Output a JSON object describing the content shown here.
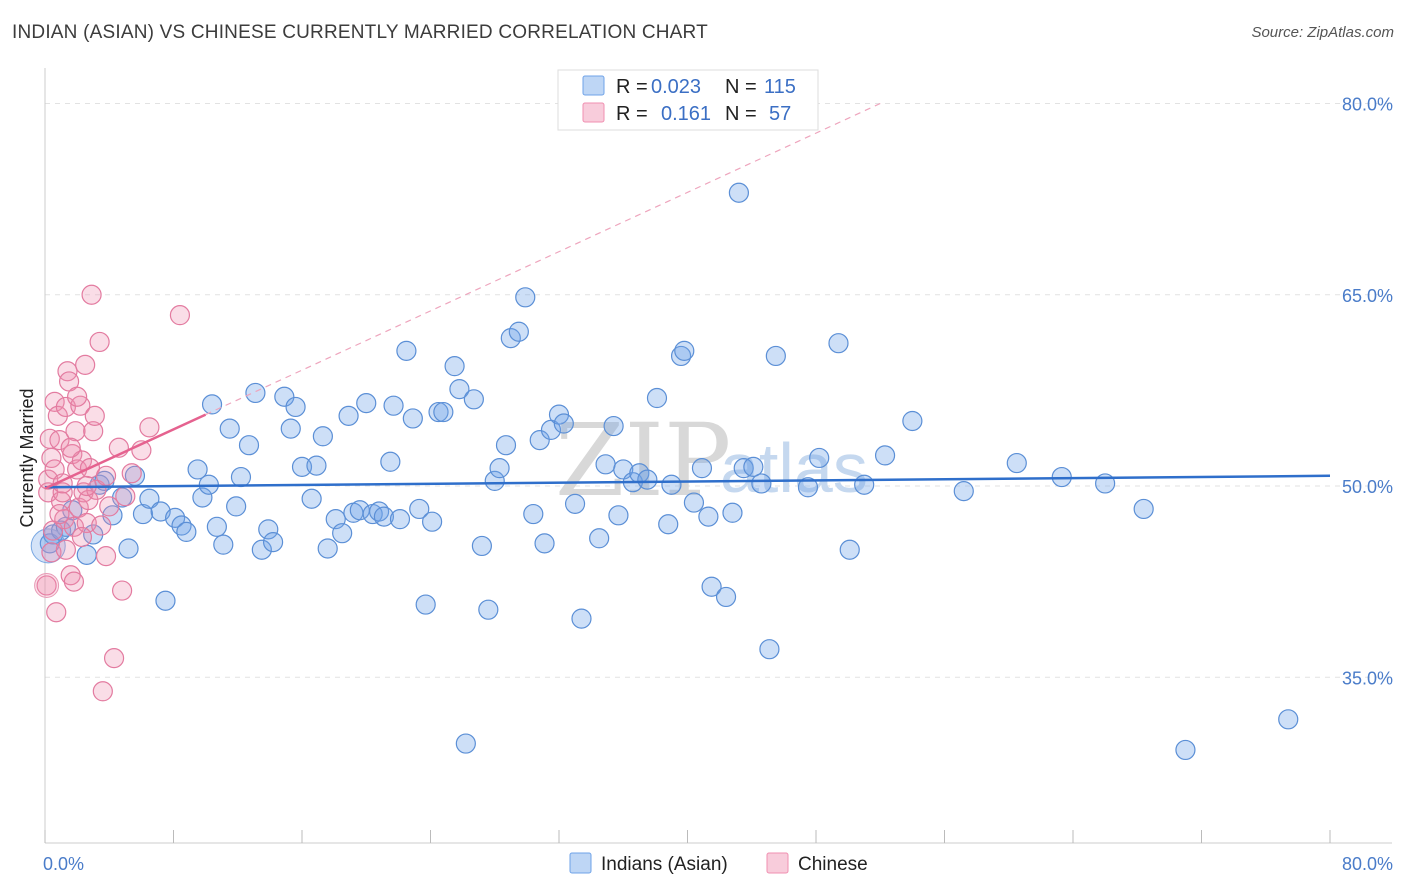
{
  "header": {
    "title": "INDIAN (ASIAN) VS CHINESE CURRENTLY MARRIED CORRELATION CHART",
    "source": "Source: ZipAtlas.com"
  },
  "legend": {
    "r_label": "R =",
    "n_label": "N =",
    "rows": [
      {
        "r": "0.023",
        "n": "115",
        "color": "#6fa3e8"
      },
      {
        "r": "0.161",
        "n": "57",
        "color": "#f08fb0"
      }
    ]
  },
  "watermark": {
    "zip": "ZIP",
    "atlas": "atlas"
  },
  "chart_data": {
    "type": "scatter",
    "xlabel": "",
    "ylabel": "Currently Married",
    "xlim": [
      0,
      80
    ],
    "ylim": [
      22,
      82
    ],
    "x_tick_labels": [
      "0.0%",
      "80.0%"
    ],
    "y_ticks": [
      35,
      50,
      65,
      80
    ],
    "y_tick_labels": [
      "35.0%",
      "50.0%",
      "65.0%",
      "80.0%"
    ],
    "grid": true,
    "legend_position": "top-center",
    "series": [
      {
        "name": "Indians (Asian)",
        "color": "#6fa3e8",
        "trend": {
          "x0": 0,
          "y0": 49.9,
          "x1": 80,
          "y1": 50.8
        },
        "points": [
          [
            0.3,
            45.5
          ],
          [
            0.5,
            46.2
          ],
          [
            1.0,
            46.5
          ],
          [
            1.3,
            46.8
          ],
          [
            1.7,
            48.1
          ],
          [
            2.6,
            44.6
          ],
          [
            3.0,
            46.2
          ],
          [
            3.4,
            50.1
          ],
          [
            3.7,
            50.4
          ],
          [
            4.2,
            47.7
          ],
          [
            4.8,
            49.1
          ],
          [
            5.2,
            45.1
          ],
          [
            5.6,
            50.8
          ],
          [
            6.1,
            47.8
          ],
          [
            6.5,
            49.0
          ],
          [
            7.2,
            48.0
          ],
          [
            7.5,
            41.0
          ],
          [
            8.1,
            47.5
          ],
          [
            8.5,
            46.9
          ],
          [
            8.8,
            46.4
          ],
          [
            9.5,
            51.3
          ],
          [
            9.8,
            49.1
          ],
          [
            10.2,
            50.1
          ],
          [
            10.4,
            56.4
          ],
          [
            10.7,
            46.8
          ],
          [
            11.1,
            45.4
          ],
          [
            11.5,
            54.5
          ],
          [
            11.9,
            48.4
          ],
          [
            12.2,
            50.7
          ],
          [
            12.7,
            53.2
          ],
          [
            13.1,
            57.3
          ],
          [
            13.5,
            45.0
          ],
          [
            13.9,
            46.6
          ],
          [
            14.2,
            45.6
          ],
          [
            14.9,
            57.0
          ],
          [
            15.3,
            54.5
          ],
          [
            15.6,
            56.2
          ],
          [
            16.0,
            51.5
          ],
          [
            16.6,
            49.0
          ],
          [
            16.9,
            51.6
          ],
          [
            17.3,
            53.9
          ],
          [
            17.6,
            45.1
          ],
          [
            18.1,
            47.4
          ],
          [
            18.5,
            46.3
          ],
          [
            18.9,
            55.5
          ],
          [
            19.2,
            47.9
          ],
          [
            19.6,
            48.1
          ],
          [
            20.0,
            56.5
          ],
          [
            20.4,
            47.8
          ],
          [
            20.8,
            48.0
          ],
          [
            21.1,
            47.6
          ],
          [
            21.5,
            51.9
          ],
          [
            21.7,
            56.3
          ],
          [
            22.1,
            47.4
          ],
          [
            22.5,
            60.6
          ],
          [
            22.9,
            55.3
          ],
          [
            23.3,
            48.2
          ],
          [
            23.7,
            40.7
          ],
          [
            24.1,
            47.2
          ],
          [
            24.5,
            55.8
          ],
          [
            24.8,
            55.8
          ],
          [
            25.5,
            59.4
          ],
          [
            25.8,
            57.6
          ],
          [
            26.2,
            29.8
          ],
          [
            26.7,
            56.8
          ],
          [
            27.2,
            45.3
          ],
          [
            27.6,
            40.3
          ],
          [
            28.0,
            50.4
          ],
          [
            28.3,
            51.4
          ],
          [
            28.7,
            53.2
          ],
          [
            29.0,
            61.6
          ],
          [
            29.5,
            62.1
          ],
          [
            29.9,
            64.8
          ],
          [
            30.4,
            47.8
          ],
          [
            30.8,
            53.6
          ],
          [
            31.1,
            45.5
          ],
          [
            31.5,
            54.4
          ],
          [
            32.0,
            55.6
          ],
          [
            32.3,
            54.9
          ],
          [
            33.0,
            48.6
          ],
          [
            33.4,
            39.6
          ],
          [
            34.5,
            45.9
          ],
          [
            34.9,
            51.7
          ],
          [
            35.4,
            54.7
          ],
          [
            35.7,
            47.7
          ],
          [
            36.0,
            51.3
          ],
          [
            36.6,
            50.3
          ],
          [
            37.0,
            51.0
          ],
          [
            37.5,
            50.5
          ],
          [
            38.1,
            56.9
          ],
          [
            38.8,
            47.0
          ],
          [
            39.0,
            50.1
          ],
          [
            39.6,
            60.2
          ],
          [
            39.8,
            60.6
          ],
          [
            40.4,
            48.7
          ],
          [
            40.9,
            51.4
          ],
          [
            41.3,
            47.6
          ],
          [
            41.5,
            42.1
          ],
          [
            42.4,
            41.3
          ],
          [
            42.8,
            47.9
          ],
          [
            43.2,
            73.0
          ],
          [
            43.5,
            51.4
          ],
          [
            44.1,
            51.5
          ],
          [
            44.6,
            50.2
          ],
          [
            45.1,
            37.2
          ],
          [
            45.5,
            60.2
          ],
          [
            47.5,
            49.9
          ],
          [
            48.2,
            52.2
          ],
          [
            49.4,
            61.2
          ],
          [
            50.1,
            45.0
          ],
          [
            51.0,
            50.1
          ],
          [
            52.3,
            52.4
          ],
          [
            54.0,
            55.1
          ],
          [
            57.2,
            49.6
          ],
          [
            60.5,
            51.8
          ],
          [
            63.3,
            50.7
          ],
          [
            66.0,
            50.2
          ],
          [
            68.4,
            48.2
          ],
          [
            71.0,
            29.3
          ],
          [
            77.4,
            31.7
          ]
        ]
      },
      {
        "name": "Chinese",
        "color": "#f08fb0",
        "trend": {
          "x0": 0,
          "y0": 49.8,
          "x1": 10,
          "y1": 55.6
        },
        "trend_ext": {
          "x0": 10,
          "y0": 55.6,
          "x1": 52,
          "y1": 80.0
        },
        "points": [
          [
            0.1,
            42.2
          ],
          [
            0.2,
            49.5
          ],
          [
            0.3,
            53.7
          ],
          [
            0.4,
            52.2
          ],
          [
            0.5,
            46.5
          ],
          [
            0.6,
            56.6
          ],
          [
            0.7,
            40.1
          ],
          [
            0.8,
            55.5
          ],
          [
            0.9,
            53.6
          ],
          [
            1.0,
            48.8
          ],
          [
            1.1,
            49.5
          ],
          [
            1.2,
            47.4
          ],
          [
            1.3,
            56.2
          ],
          [
            1.4,
            59.0
          ],
          [
            1.5,
            58.2
          ],
          [
            1.6,
            43.0
          ],
          [
            1.7,
            52.5
          ],
          [
            1.8,
            46.8
          ],
          [
            1.9,
            54.3
          ],
          [
            2.0,
            51.3
          ],
          [
            2.1,
            48.3
          ],
          [
            2.2,
            56.3
          ],
          [
            2.3,
            52.0
          ],
          [
            2.4,
            49.5
          ],
          [
            2.5,
            59.5
          ],
          [
            2.6,
            47.1
          ],
          [
            2.7,
            48.9
          ],
          [
            2.8,
            51.4
          ],
          [
            2.9,
            65.0
          ],
          [
            3.0,
            54.3
          ],
          [
            3.2,
            49.7
          ],
          [
            3.4,
            61.3
          ],
          [
            3.5,
            46.9
          ],
          [
            3.6,
            33.9
          ],
          [
            3.8,
            50.8
          ],
          [
            4.0,
            48.4
          ],
          [
            4.3,
            36.5
          ],
          [
            4.6,
            53.0
          ],
          [
            4.8,
            41.8
          ],
          [
            5.4,
            51.0
          ],
          [
            6.0,
            52.8
          ],
          [
            6.5,
            54.6
          ],
          [
            8.4,
            63.4
          ],
          [
            0.2,
            50.5
          ],
          [
            0.4,
            44.8
          ],
          [
            0.6,
            51.3
          ],
          [
            0.9,
            47.8
          ],
          [
            1.1,
            50.2
          ],
          [
            1.3,
            45.0
          ],
          [
            1.6,
            53.0
          ],
          [
            1.8,
            42.5
          ],
          [
            2.0,
            57.0
          ],
          [
            2.3,
            46.0
          ],
          [
            2.6,
            50.0
          ],
          [
            3.1,
            55.5
          ],
          [
            3.8,
            44.5
          ],
          [
            5.0,
            49.2
          ]
        ]
      }
    ]
  },
  "bottom_legend": [
    {
      "label": "Indians (Asian)",
      "color": "#6fa3e8"
    },
    {
      "label": "Chinese",
      "color": "#f08fb0"
    }
  ]
}
